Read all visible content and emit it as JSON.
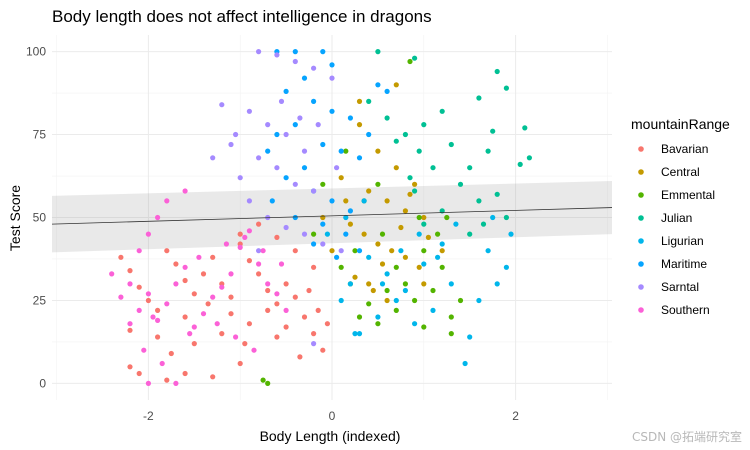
{
  "chart_data": {
    "type": "scatter",
    "title": "Body length does not affect intelligence in dragons",
    "xlabel": "Body Length (indexed)",
    "ylabel": "Test Score",
    "xlim": [
      -3.05,
      3.05
    ],
    "ylim": [
      -5,
      105
    ],
    "x_ticks": [
      -2,
      0,
      2
    ],
    "x_tick_labels": [
      "-2",
      "0",
      "2"
    ],
    "y_ticks": [
      0,
      25,
      50,
      75,
      100
    ],
    "y_tick_labels": [
      "0",
      "25",
      "50",
      "75",
      "100"
    ],
    "grid": true,
    "legend": {
      "title": "mountainRange",
      "position": "right"
    },
    "trend_line": {
      "x": [
        -3.05,
        3.05
      ],
      "y": [
        48,
        53
      ],
      "ci_lower": [
        39.5,
        45
      ],
      "ci_upper": [
        56.5,
        61
      ]
    },
    "series": [
      {
        "name": "Bavarian",
        "color": "#F8766D",
        "points": [
          [
            -2.2,
            5
          ],
          [
            -2.1,
            3
          ],
          [
            -1.8,
            1
          ],
          [
            -1.6,
            3
          ],
          [
            -1.3,
            2
          ],
          [
            -1.0,
            6
          ],
          [
            -2.3,
            38
          ],
          [
            -2.2,
            34
          ],
          [
            -2.1,
            29
          ],
          [
            -2.0,
            25
          ],
          [
            -1.9,
            22
          ],
          [
            -1.8,
            40
          ],
          [
            -1.7,
            36
          ],
          [
            -1.6,
            31
          ],
          [
            -1.5,
            27
          ],
          [
            -1.4,
            33
          ],
          [
            -1.3,
            38
          ],
          [
            -1.2,
            30
          ],
          [
            -1.1,
            26
          ],
          [
            -1.0,
            42
          ],
          [
            -0.9,
            37
          ],
          [
            -0.8,
            33
          ],
          [
            -0.7,
            28
          ],
          [
            -0.6,
            24
          ],
          [
            -0.5,
            30
          ],
          [
            -0.4,
            26
          ],
          [
            -0.3,
            20
          ],
          [
            -0.2,
            15
          ],
          [
            -0.1,
            10
          ],
          [
            -1.5,
            12
          ],
          [
            -1.2,
            15
          ],
          [
            -0.9,
            18
          ],
          [
            -0.6,
            14
          ],
          [
            -0.35,
            8
          ],
          [
            -1.9,
            14
          ],
          [
            -2.2,
            16
          ],
          [
            -1.0,
            45
          ],
          [
            -0.8,
            48
          ],
          [
            -0.6,
            44
          ],
          [
            -0.4,
            40
          ],
          [
            -0.2,
            35
          ],
          [
            -1.1,
            21
          ],
          [
            -0.7,
            22
          ],
          [
            -0.5,
            17
          ],
          [
            -1.6,
            20
          ],
          [
            -1.35,
            24
          ],
          [
            -0.25,
            28
          ],
          [
            -0.15,
            22
          ],
          [
            -0.05,
            18
          ],
          [
            -1.75,
            9
          ],
          [
            -0.95,
            12
          ]
        ]
      },
      {
        "name": "Central",
        "color": "#C49A00",
        "points": [
          [
            0.3,
            78
          ],
          [
            0.5,
            70
          ],
          [
            0.7,
            65
          ],
          [
            0.9,
            60
          ],
          [
            0.4,
            58
          ],
          [
            0.6,
            55
          ],
          [
            0.8,
            52
          ],
          [
            1.0,
            50
          ],
          [
            0.2,
            48
          ],
          [
            0.35,
            45
          ],
          [
            0.5,
            42
          ],
          [
            0.65,
            40
          ],
          [
            0.8,
            38
          ],
          [
            0.95,
            35
          ],
          [
            0.25,
            32
          ],
          [
            0.45,
            28
          ],
          [
            0.6,
            25
          ],
          [
            0.1,
            62
          ],
          [
            0.15,
            55
          ],
          [
            0.75,
            47
          ],
          [
            1.05,
            44
          ],
          [
            0.55,
            36
          ],
          [
            0.4,
            30
          ],
          [
            0.85,
            57
          ],
          [
            0.7,
            90
          ],
          [
            0.0,
            40
          ],
          [
            -0.1,
            50
          ],
          [
            0.3,
            85
          ],
          [
            1.2,
            40
          ],
          [
            1.0,
            30
          ]
        ]
      },
      {
        "name": "Emmental",
        "color": "#53B400",
        "points": [
          [
            -0.7,
            0
          ],
          [
            -0.75,
            1
          ],
          [
            0.3,
            20
          ],
          [
            0.5,
            18
          ],
          [
            0.7,
            22
          ],
          [
            0.9,
            25
          ],
          [
            1.1,
            28
          ],
          [
            1.3,
            20
          ],
          [
            1.4,
            25
          ],
          [
            1.2,
            35
          ],
          [
            1.0,
            40
          ],
          [
            0.8,
            30
          ],
          [
            0.6,
            28
          ],
          [
            0.4,
            24
          ],
          [
            0.2,
            30
          ],
          [
            1.3,
            15
          ],
          [
            1.0,
            17
          ],
          [
            0.1,
            35
          ],
          [
            0.25,
            40
          ],
          [
            0.55,
            45
          ],
          [
            0.7,
            35
          ],
          [
            1.15,
            45
          ],
          [
            0.95,
            50
          ],
          [
            0.5,
            60
          ],
          [
            0.15,
            70
          ],
          [
            -0.1,
            60
          ],
          [
            -0.2,
            45
          ],
          [
            0.35,
            55
          ],
          [
            1.25,
            50
          ],
          [
            0.85,
            97
          ]
        ]
      },
      {
        "name": "Julian",
        "color": "#00C094",
        "points": [
          [
            0.5,
            100
          ],
          [
            0.9,
            98
          ],
          [
            1.8,
            94
          ],
          [
            1.9,
            89
          ],
          [
            1.6,
            86
          ],
          [
            1.2,
            82
          ],
          [
            1.0,
            78
          ],
          [
            0.8,
            75
          ],
          [
            2.1,
            77
          ],
          [
            2.15,
            68
          ],
          [
            1.7,
            70
          ],
          [
            1.5,
            65
          ],
          [
            1.4,
            60
          ],
          [
            1.6,
            55
          ],
          [
            1.8,
            57
          ],
          [
            1.3,
            72
          ],
          [
            1.1,
            65
          ],
          [
            0.9,
            58
          ],
          [
            0.7,
            73
          ],
          [
            0.6,
            80
          ],
          [
            0.4,
            85
          ],
          [
            1.65,
            48
          ],
          [
            1.9,
            50
          ],
          [
            1.5,
            45
          ],
          [
            1.2,
            52
          ],
          [
            1.0,
            48
          ],
          [
            0.85,
            62
          ],
          [
            1.75,
            76
          ],
          [
            2.05,
            66
          ],
          [
            0.95,
            70
          ]
        ]
      },
      {
        "name": "Ligurian",
        "color": "#00B6EB",
        "points": [
          [
            0.3,
            15
          ],
          [
            0.5,
            20
          ],
          [
            0.7,
            25
          ],
          [
            0.9,
            18
          ],
          [
            1.1,
            22
          ],
          [
            1.3,
            30
          ],
          [
            1.5,
            14
          ],
          [
            1.45,
            6
          ],
          [
            1.8,
            30
          ],
          [
            1.7,
            40
          ],
          [
            1.9,
            35
          ],
          [
            1.6,
            25
          ],
          [
            0.2,
            30
          ],
          [
            0.4,
            38
          ],
          [
            0.6,
            33
          ],
          [
            0.8,
            28
          ],
          [
            1.0,
            36
          ],
          [
            1.2,
            42
          ],
          [
            0.1,
            25
          ],
          [
            -0.05,
            45
          ],
          [
            0.15,
            50
          ],
          [
            0.35,
            55
          ],
          [
            1.35,
            48
          ],
          [
            1.75,
            50
          ],
          [
            1.95,
            45
          ],
          [
            0.25,
            15
          ],
          [
            0.55,
            30
          ],
          [
            0.75,
            40
          ],
          [
            0.95,
            45
          ],
          [
            1.15,
            38
          ]
        ]
      },
      {
        "name": "Maritime",
        "color": "#06A4FF",
        "points": [
          [
            -0.6,
            100
          ],
          [
            -0.4,
            100
          ],
          [
            -0.1,
            100
          ],
          [
            0.0,
            96
          ],
          [
            -0.3,
            92
          ],
          [
            -0.5,
            88
          ],
          [
            -0.2,
            85
          ],
          [
            0.0,
            82
          ],
          [
            0.2,
            80
          ],
          [
            -0.4,
            78
          ],
          [
            -0.6,
            75
          ],
          [
            -0.1,
            72
          ],
          [
            0.1,
            70
          ],
          [
            0.3,
            68
          ],
          [
            -0.3,
            65
          ],
          [
            -0.5,
            62
          ],
          [
            -0.2,
            58
          ],
          [
            0.0,
            55
          ],
          [
            0.2,
            52
          ],
          [
            -0.4,
            50
          ],
          [
            -0.1,
            48
          ],
          [
            0.15,
            45
          ],
          [
            0.3,
            40
          ],
          [
            -0.2,
            42
          ],
          [
            0.05,
            38
          ],
          [
            0.5,
            90
          ],
          [
            0.4,
            75
          ],
          [
            0.6,
            88
          ],
          [
            -0.7,
            70
          ],
          [
            -0.65,
            55
          ]
        ]
      },
      {
        "name": "Sarntal",
        "color": "#A58AFF",
        "points": [
          [
            -0.8,
            100
          ],
          [
            -0.6,
            99
          ],
          [
            -0.4,
            97
          ],
          [
            -0.2,
            95
          ],
          [
            0.0,
            92
          ],
          [
            -1.2,
            84
          ],
          [
            -0.9,
            82
          ],
          [
            -0.7,
            78
          ],
          [
            -0.5,
            75
          ],
          [
            -0.3,
            70
          ],
          [
            -1.1,
            72
          ],
          [
            -0.8,
            68
          ],
          [
            -0.6,
            65
          ],
          [
            -0.4,
            60
          ],
          [
            -0.2,
            58
          ],
          [
            -1.0,
            62
          ],
          [
            -1.3,
            68
          ],
          [
            -0.9,
            55
          ],
          [
            -0.7,
            50
          ],
          [
            -0.5,
            47
          ],
          [
            -0.3,
            45
          ],
          [
            -0.1,
            42
          ],
          [
            -0.2,
            12
          ],
          [
            0.1,
            40
          ],
          [
            -0.8,
            40
          ],
          [
            -1.05,
            75
          ],
          [
            -0.55,
            85
          ],
          [
            -0.35,
            80
          ],
          [
            -0.15,
            78
          ],
          [
            0.05,
            65
          ]
        ]
      },
      {
        "name": "Southern",
        "color": "#FB61D7",
        "points": [
          [
            -2.4,
            33
          ],
          [
            -2.3,
            26
          ],
          [
            -2.2,
            30
          ],
          [
            -2.1,
            22
          ],
          [
            -2.0,
            27
          ],
          [
            -1.9,
            19
          ],
          [
            -1.8,
            24
          ],
          [
            -1.7,
            30
          ],
          [
            -1.6,
            35
          ],
          [
            -1.5,
            17
          ],
          [
            -1.4,
            21
          ],
          [
            -1.3,
            26
          ],
          [
            -1.2,
            29
          ],
          [
            -1.1,
            33
          ],
          [
            -1.0,
            41
          ],
          [
            -0.9,
            46
          ],
          [
            -0.8,
            36
          ],
          [
            -0.7,
            30
          ],
          [
            -0.6,
            27
          ],
          [
            -0.5,
            22
          ],
          [
            -2.0,
            45
          ],
          [
            -1.9,
            50
          ],
          [
            -1.8,
            55
          ],
          [
            -1.6,
            58
          ],
          [
            -2.1,
            40
          ],
          [
            -2.2,
            18
          ],
          [
            -2.05,
            10
          ],
          [
            -1.85,
            6
          ],
          [
            -2.0,
            0
          ],
          [
            -1.7,
            0
          ],
          [
            -1.95,
            20
          ],
          [
            -1.55,
            15
          ],
          [
            -1.25,
            18
          ],
          [
            -1.05,
            14
          ],
          [
            -0.85,
            10
          ],
          [
            -1.45,
            38
          ],
          [
            -1.15,
            42
          ],
          [
            -0.95,
            44
          ],
          [
            -0.75,
            40
          ],
          [
            -0.55,
            36
          ]
        ]
      }
    ]
  },
  "watermark": "CSDN @拓端研究室"
}
